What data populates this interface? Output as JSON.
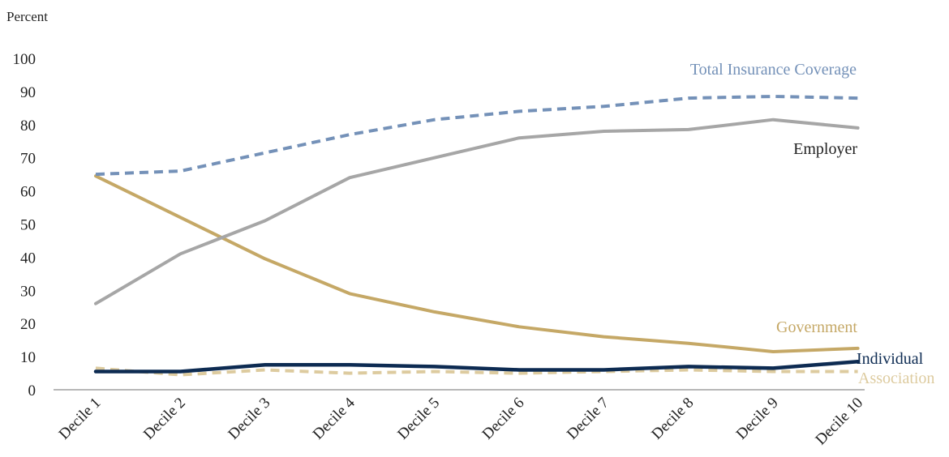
{
  "chart_data": {
    "type": "line",
    "ylabel": "Percent",
    "ylim": [
      0,
      100
    ],
    "yticks": [
      "0",
      "10",
      "20",
      "30",
      "40",
      "50",
      "60",
      "70",
      "80",
      "90",
      "100"
    ],
    "categories": [
      "Decile 1",
      "Decile 2",
      "Decile 3",
      "Decile 4",
      "Decile 5",
      "Decile 6",
      "Decile 7",
      "Decile 8",
      "Decile 9",
      "Decile 10"
    ],
    "grid": false,
    "series": [
      {
        "name": "Total Insurance Coverage",
        "color": "#7491b8",
        "style": "dashed",
        "values": [
          65,
          66,
          71.5,
          77,
          81.5,
          84,
          85.5,
          88,
          88.5,
          88
        ]
      },
      {
        "name": "Employer",
        "color": "#a6a6a6",
        "style": "solid",
        "label_color": "#222222",
        "values": [
          26,
          41,
          51,
          64,
          70,
          76,
          78,
          78.5,
          81.5,
          79
        ]
      },
      {
        "name": "Government",
        "color": "#c5a866",
        "style": "solid",
        "values": [
          64.5,
          52,
          39.5,
          29,
          23.5,
          19,
          16,
          14,
          11.5,
          12.5
        ]
      },
      {
        "name": "Individual",
        "color": "#0d2b52",
        "style": "solid",
        "values": [
          5.5,
          5.5,
          7.5,
          7.5,
          7,
          6,
          6,
          7,
          6.5,
          8.5
        ]
      },
      {
        "name": "Association",
        "color": "#ddcb9f",
        "style": "dashed",
        "values": [
          6.5,
          4.5,
          6,
          5,
          5.5,
          5,
          5.5,
          6,
          5.5,
          5.5
        ]
      }
    ]
  }
}
